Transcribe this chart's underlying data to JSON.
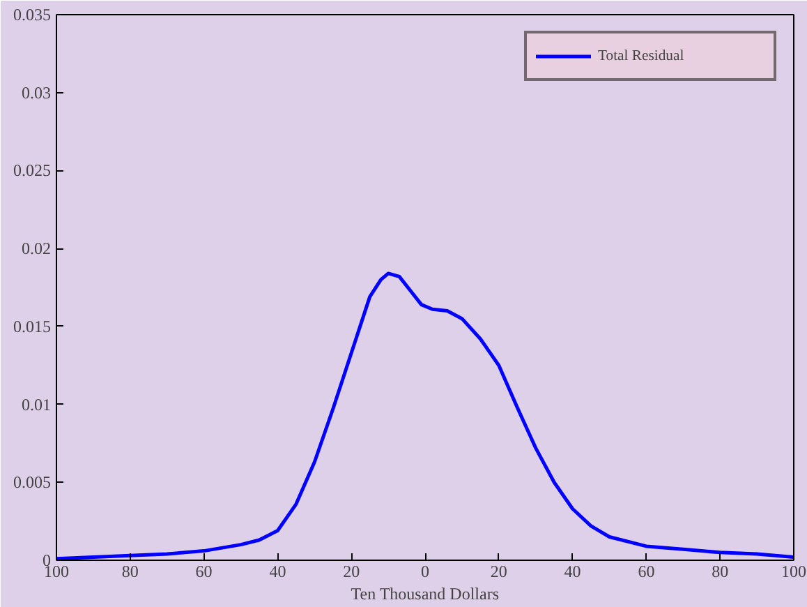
{
  "chart_data": {
    "type": "line",
    "xlabel": "Ten Thousand Dollars",
    "x": [
      -100,
      -90,
      -80,
      -70,
      -60,
      -50,
      -45,
      -40,
      -35,
      -30,
      -25,
      -20,
      -15,
      -12,
      -10,
      -7,
      -4,
      -1,
      2,
      6,
      10,
      15,
      20,
      25,
      30,
      35,
      40,
      45,
      50,
      60,
      70,
      80,
      90,
      100
    ],
    "series": [
      {
        "name": "Total Residual",
        "color": "#0000ff",
        "values": [
          0.0001,
          0.0002,
          0.0003,
          0.0004,
          0.0006,
          0.001,
          0.0013,
          0.0019,
          0.0036,
          0.0063,
          0.0097,
          0.0133,
          0.0169,
          0.018,
          0.0184,
          0.0182,
          0.0173,
          0.0164,
          0.0161,
          0.016,
          0.0155,
          0.0142,
          0.0125,
          0.0098,
          0.0072,
          0.005,
          0.0033,
          0.0022,
          0.0015,
          0.0009,
          0.0007,
          0.0005,
          0.0004,
          0.0002
        ]
      }
    ],
    "xlim": [
      -100,
      100
    ],
    "xticks": [
      {
        "value": -100,
        "label": "100"
      },
      {
        "value": -80,
        "label": "80"
      },
      {
        "value": -60,
        "label": "60"
      },
      {
        "value": -40,
        "label": "40"
      },
      {
        "value": -20,
        "label": "20"
      },
      0,
      20,
      40,
      60,
      80,
      100
    ],
    "ylim": [
      0,
      0.035
    ],
    "yticks": [
      0,
      0.005,
      0.01,
      0.015,
      0.02,
      0.025,
      0.03,
      0.035
    ],
    "grid": false,
    "legend": "top right",
    "line_style": "solid",
    "marker": "none"
  }
}
